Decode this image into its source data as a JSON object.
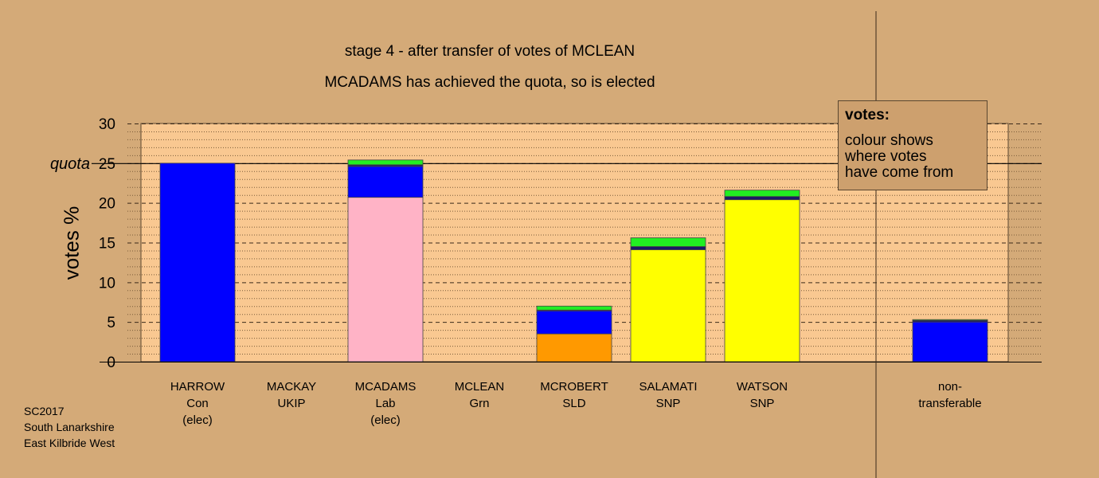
{
  "title_line1": "stage 4 - after transfer of votes of MCLEAN",
  "title_line2": "MCADAMS has achieved the quota, so is elected",
  "legend": {
    "heading": "votes:",
    "line1": "colour shows",
    "line2": "where votes",
    "line3": "have come from"
  },
  "footer": {
    "line1": "SC2017",
    "line2": "South Lanarkshire",
    "line3": "East Kilbride West"
  },
  "colors": {
    "background": "#d4aa78",
    "plot_area": "#f9c891",
    "con": "#0000ff",
    "lab": "#ffb3c6",
    "grn": "#22ee22",
    "snp": "#ffff00",
    "sld": "#ff9900",
    "ukip": "#1a1a66"
  },
  "chart_data": {
    "type": "bar",
    "stacked": true,
    "ylabel": "votes %",
    "ylim": [
      0,
      30
    ],
    "yticks": [
      "0",
      "5",
      "10",
      "15",
      "20",
      "25",
      "30"
    ],
    "quota": {
      "value": 25,
      "label": "quota"
    },
    "grid": "dashed major every 5, dotted minor every 1",
    "categories": [
      {
        "name": "HARROW",
        "party": "Con",
        "note": "(elec)"
      },
      {
        "name": "MACKAY",
        "party": "UKIP",
        "note": ""
      },
      {
        "name": "MCADAMS",
        "party": "Lab",
        "note": "(elec)"
      },
      {
        "name": "MCLEAN",
        "party": "Grn",
        "note": ""
      },
      {
        "name": "MCROBERT",
        "party": "SLD",
        "note": ""
      },
      {
        "name": "SALAMATI",
        "party": "SNP",
        "note": ""
      },
      {
        "name": "WATSON",
        "party": "SNP",
        "note": ""
      },
      {
        "name": "non-",
        "party": "transferable",
        "note": ""
      }
    ],
    "series": [
      {
        "color_key": "con",
        "values": [
          25.0,
          0,
          0,
          0,
          0,
          0,
          0,
          0
        ]
      },
      {
        "color_key": "lab",
        "values": [
          0,
          0,
          20.7,
          0,
          0,
          0,
          0,
          0
        ]
      },
      {
        "color_key": "sld",
        "values": [
          0,
          0,
          0,
          0,
          3.5,
          0,
          0,
          0
        ]
      },
      {
        "color_key": "snp",
        "values": [
          0,
          0,
          0,
          0,
          0,
          14.1,
          20.4,
          0
        ]
      },
      {
        "color_key": "con",
        "values": [
          0,
          0,
          3.9,
          0,
          2.9,
          0,
          0,
          5.0
        ]
      },
      {
        "color_key": "ukip",
        "values": [
          0,
          0,
          0.2,
          0,
          0.1,
          0.4,
          0.4,
          0.2
        ]
      },
      {
        "color_key": "grn",
        "values": [
          0,
          0,
          0.6,
          0,
          0.5,
          1.1,
          0.8,
          0.1
        ]
      }
    ]
  }
}
